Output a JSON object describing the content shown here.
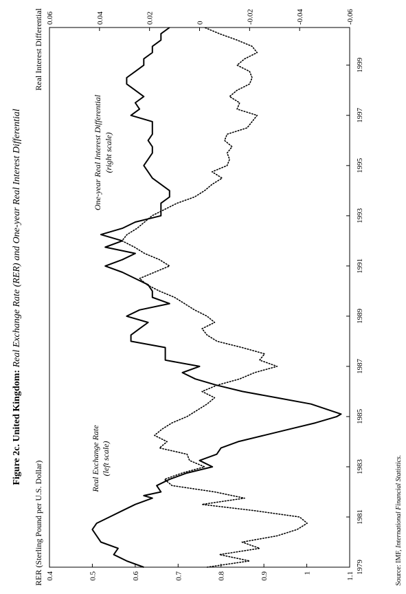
{
  "figure": {
    "title_bold": "Figure 2c. United Kingdom:",
    "title_italic": "Real Exchange Rate (RER) and One-year Real Interest Differential",
    "source_label": "Source: IMF,",
    "source_italic": "International Financial Statistics."
  },
  "chart_data": {
    "type": "line",
    "orientation": "rotated-90-counterclockwise",
    "x_ticks": [
      1979,
      1981,
      1983,
      1985,
      1987,
      1989,
      1991,
      1993,
      1995,
      1997,
      1999
    ],
    "xlim": [
      1979,
      2000.5
    ],
    "left_axis": {
      "label": "RER (Sterling Pound per U.S. Dollar)",
      "ylim": [
        0.4,
        1.1
      ],
      "ticks": [
        0.4,
        0.5,
        0.6,
        0.7,
        0.8,
        0.9,
        1,
        1.1
      ]
    },
    "right_axis": {
      "label": "Real Interest Differential",
      "ylim": [
        -0.06,
        0.06
      ],
      "ticks": [
        -0.06,
        -0.04,
        -0.02,
        0,
        0.02,
        0.04,
        0.06
      ]
    },
    "grid": false,
    "series": [
      {
        "name": "Real Exchange Rate (left scale)",
        "label_lines": [
          "Real Exchange Rate",
          "(left scale)"
        ],
        "axis": "left",
        "style": "solid",
        "x": [
          1979.0,
          1979.25,
          1979.5,
          1979.75,
          1980.0,
          1980.25,
          1980.5,
          1980.75,
          1981.0,
          1981.25,
          1981.5,
          1981.75,
          1981.85,
          1982.0,
          1982.25,
          1982.5,
          1982.75,
          1983.0,
          1983.25,
          1983.5,
          1983.75,
          1984.0,
          1984.25,
          1984.5,
          1984.75,
          1985.0,
          1985.1,
          1985.5,
          1985.75,
          1986.0,
          1986.25,
          1986.5,
          1986.75,
          1987.0,
          1987.25,
          1987.5,
          1987.75,
          1988.0,
          1988.25,
          1988.5,
          1988.75,
          1989.0,
          1989.25,
          1989.5,
          1989.75,
          1990.0,
          1990.25,
          1990.5,
          1990.75,
          1991.0,
          1991.25,
          1991.5,
          1991.75,
          1992.0,
          1992.25,
          1992.5,
          1992.75,
          1993.0,
          1993.25,
          1993.5,
          1993.75,
          1994.0,
          1994.25,
          1994.5,
          1994.75,
          1995.0,
          1995.25,
          1995.5,
          1995.75,
          1996.0,
          1996.25,
          1996.5,
          1996.75,
          1997.0,
          1997.25,
          1997.5,
          1997.75,
          1998.0,
          1998.25,
          1998.5,
          1998.75,
          1999.0,
          1999.25,
          1999.5,
          1999.75,
          2000.0,
          2000.25,
          2000.5
        ],
        "values": [
          0.62,
          0.58,
          0.55,
          0.56,
          0.52,
          0.51,
          0.5,
          0.51,
          0.54,
          0.57,
          0.6,
          0.64,
          0.62,
          0.66,
          0.65,
          0.68,
          0.72,
          0.78,
          0.75,
          0.79,
          0.8,
          0.84,
          0.9,
          0.96,
          1.02,
          1.07,
          1.08,
          1.01,
          0.93,
          0.85,
          0.79,
          0.74,
          0.71,
          0.75,
          0.67,
          0.67,
          0.67,
          0.59,
          0.59,
          0.61,
          0.63,
          0.58,
          0.61,
          0.68,
          0.64,
          0.64,
          0.63,
          0.6,
          0.57,
          0.53,
          0.57,
          0.6,
          0.53,
          0.57,
          0.52,
          0.57,
          0.6,
          0.66,
          0.66,
          0.66,
          0.68,
          0.68,
          0.66,
          0.64,
          0.63,
          0.62,
          0.63,
          0.64,
          0.64,
          0.63,
          0.64,
          0.64,
          0.64,
          0.59,
          0.61,
          0.6,
          0.62,
          0.6,
          0.58,
          0.58,
          0.6,
          0.62,
          0.62,
          0.64,
          0.64,
          0.66,
          0.66,
          0.68
        ]
      },
      {
        "name": "One-year Real Interest Differential (right scale)",
        "label_lines": [
          "One-year Real Interest Differential",
          "(right scale)"
        ],
        "axis": "right",
        "style": "dotted",
        "x": [
          1979.0,
          1979.25,
          1979.5,
          1979.75,
          1980.0,
          1980.25,
          1980.5,
          1980.75,
          1981.0,
          1981.25,
          1981.5,
          1981.75,
          1982.0,
          1982.25,
          1982.5,
          1982.75,
          1983.0,
          1983.25,
          1983.5,
          1983.75,
          1984.0,
          1984.25,
          1984.5,
          1984.75,
          1985.0,
          1985.25,
          1985.5,
          1985.75,
          1986.0,
          1986.25,
          1986.5,
          1986.75,
          1987.0,
          1987.25,
          1987.5,
          1987.75,
          1988.0,
          1988.25,
          1988.5,
          1988.75,
          1989.0,
          1989.25,
          1989.5,
          1989.75,
          1990.0,
          1990.25,
          1990.5,
          1990.75,
          1991.0,
          1991.25,
          1991.5,
          1991.75,
          1992.0,
          1992.25,
          1992.5,
          1992.75,
          1993.0,
          1993.25,
          1993.5,
          1993.75,
          1994.0,
          1994.25,
          1994.5,
          1994.75,
          1995.0,
          1995.25,
          1995.5,
          1995.75,
          1996.0,
          1996.25,
          1996.5,
          1996.75,
          1997.0,
          1997.25,
          1997.5,
          1997.75,
          1998.0,
          1998.25,
          1998.5,
          1998.75,
          1999.0,
          1999.25,
          1999.5,
          1999.75,
          2000.0,
          2000.25,
          2000.5
        ],
        "values": [
          -0.003,
          -0.02,
          -0.008,
          -0.024,
          -0.017,
          -0.031,
          -0.039,
          -0.043,
          -0.04,
          -0.022,
          -0.001,
          -0.018,
          -0.006,
          0.011,
          0.014,
          0.007,
          -0.002,
          0.004,
          0.005,
          0.016,
          0.013,
          0.018,
          0.015,
          0.011,
          0.005,
          0.001,
          -0.003,
          -0.006,
          -0.001,
          -0.007,
          -0.016,
          -0.022,
          -0.031,
          -0.024,
          -0.026,
          -0.017,
          -0.007,
          -0.003,
          -0.001,
          -0.006,
          -0.003,
          0.002,
          0.006,
          0.01,
          0.016,
          0.021,
          0.024,
          0.018,
          0.012,
          0.016,
          0.022,
          0.026,
          0.031,
          0.029,
          0.025,
          0.022,
          0.019,
          0.014,
          0.009,
          0.002,
          -0.002,
          -0.005,
          -0.009,
          -0.005,
          -0.011,
          -0.012,
          -0.011,
          -0.013,
          -0.01,
          -0.011,
          -0.019,
          -0.021,
          -0.023,
          -0.015,
          -0.016,
          -0.012,
          -0.015,
          -0.02,
          -0.021,
          -0.02,
          -0.015,
          -0.018,
          -0.023,
          -0.021,
          -0.015,
          -0.008,
          -0.002
        ]
      }
    ]
  }
}
